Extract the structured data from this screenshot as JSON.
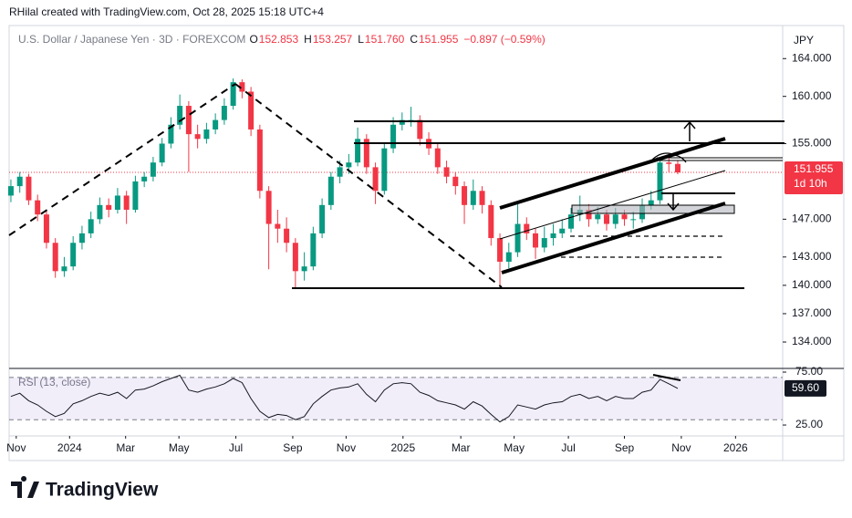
{
  "credit": "RHilal created with TradingView.com, Oct 28, 2025 15:18 UTC+4",
  "brand": "TradingView",
  "chart_data": {
    "type": "candlestick",
    "title": "U.S. Dollar / Japanese Yen · 3D · FOREXCOM",
    "ohlc_legend": [
      {
        "key": "O",
        "value": "152.853"
      },
      {
        "key": "H",
        "value": "153.257"
      },
      {
        "key": "L",
        "value": "151.760"
      },
      {
        "key": "C",
        "value": "151.955"
      }
    ],
    "change": "−0.897 (−0.59%)",
    "currency": "JPY",
    "countdown": "1d 10h",
    "up_color": "#089981",
    "down_color": "#f23645",
    "open": [
      149.5,
      150.5,
      151.5,
      149.0,
      147.5,
      144.5,
      141.5,
      142.0,
      144.5,
      145.5,
      147.0,
      148.5,
      148.0,
      149.5,
      148.0,
      151.0,
      151.5,
      153.0,
      155.0,
      157.0,
      159.0,
      156.0,
      155.5,
      156.5,
      157.5,
      159.0,
      161.5,
      160.5,
      156.5,
      150.0,
      146.5,
      146.0,
      144.5,
      141.5,
      142.0,
      145.5,
      148.5,
      151.5,
      152.5,
      153.0,
      155.5,
      152.5,
      150.0,
      154.5,
      157.0,
      157.5,
      157.5,
      155.5,
      154.5,
      152.5,
      151.5,
      150.5,
      148.5,
      150.0,
      148.5,
      145.0,
      142.5,
      143.5,
      146.5,
      145.5,
      144.0,
      145.0,
      145.5,
      146.0,
      147.5,
      148.0,
      147.0,
      147.5,
      146.5,
      147.5,
      147.0,
      147.0,
      148.5,
      149.0,
      153.0,
      152.853
    ],
    "high": [
      151.2,
      152.0,
      151.8,
      149.6,
      148.0,
      145.0,
      143.0,
      145.2,
      146.3,
      147.8,
      149.3,
      149.2,
      150.3,
      150.0,
      151.6,
      152.0,
      153.6,
      155.6,
      157.8,
      160.2,
      159.5,
      157.0,
      157.2,
      158.2,
      159.8,
      161.9,
      161.8,
      161.0,
      157.0,
      150.5,
      148.0,
      147.2,
      145.0,
      143.5,
      146.2,
      149.2,
      152.0,
      153.2,
      153.9,
      156.7,
      156.0,
      153.0,
      155.0,
      157.8,
      158.3,
      158.9,
      158.0,
      156.2,
      155.0,
      153.2,
      152.0,
      151.0,
      151.2,
      150.5,
      149.0,
      145.5,
      144.5,
      148.6,
      147.2,
      146.0,
      146.2,
      146.5,
      147.0,
      148.2,
      149.5,
      148.6,
      148.3,
      148.0,
      148.2,
      148.0,
      147.8,
      149.2,
      150.0,
      153.5,
      153.6,
      153.257
    ],
    "low": [
      148.8,
      149.8,
      148.5,
      146.8,
      143.9,
      140.8,
      140.9,
      141.6,
      143.8,
      145.0,
      146.5,
      147.2,
      147.6,
      146.5,
      147.7,
      150.4,
      151.0,
      152.6,
      154.5,
      156.5,
      152.0,
      154.5,
      155.0,
      156.0,
      157.0,
      158.6,
      159.8,
      155.8,
      149.2,
      141.7,
      144.5,
      143.5,
      139.6,
      140.5,
      141.6,
      145.0,
      148.0,
      150.8,
      151.8,
      152.6,
      151.8,
      148.6,
      149.6,
      154.0,
      156.4,
      156.8,
      154.8,
      153.8,
      151.8,
      150.8,
      149.6,
      146.5,
      148.0,
      147.6,
      144.2,
      139.9,
      141.8,
      143.0,
      144.8,
      142.8,
      143.5,
      144.2,
      145.0,
      145.6,
      146.8,
      146.2,
      146.5,
      145.8,
      146.0,
      146.3,
      146.0,
      146.6,
      148.0,
      148.6,
      152.0,
      151.76
    ],
    "close": [
      150.5,
      151.5,
      149.0,
      147.5,
      144.5,
      141.5,
      142.0,
      144.5,
      145.5,
      147.0,
      148.5,
      148.0,
      149.5,
      148.0,
      151.0,
      151.5,
      153.0,
      155.0,
      157.0,
      159.0,
      156.0,
      155.5,
      156.5,
      157.5,
      159.0,
      161.5,
      160.5,
      156.5,
      150.0,
      146.5,
      146.0,
      144.5,
      141.5,
      142.0,
      145.5,
      148.5,
      151.5,
      152.5,
      153.0,
      155.5,
      152.5,
      150.0,
      154.5,
      157.0,
      157.5,
      157.5,
      155.5,
      154.5,
      152.5,
      151.5,
      150.5,
      148.5,
      150.0,
      148.5,
      145.0,
      142.5,
      143.5,
      146.5,
      145.5,
      144.0,
      145.0,
      145.5,
      146.0,
      147.5,
      148.0,
      147.0,
      147.5,
      146.5,
      147.5,
      147.0,
      147.0,
      148.5,
      149.0,
      153.0,
      152.853,
      151.955
    ],
    "xlim": [
      -0.2,
      86.8
    ],
    "xticks": [
      {
        "value": 0.6,
        "label": "Nov"
      },
      {
        "value": 6.6,
        "label": "2024"
      },
      {
        "value": 12.9,
        "label": "Mar"
      },
      {
        "value": 18.9,
        "label": "May"
      },
      {
        "value": 25.3,
        "label": "Jul"
      },
      {
        "value": 31.7,
        "label": "Sep"
      },
      {
        "value": 37.7,
        "label": "Nov"
      },
      {
        "value": 44.1,
        "label": "2025"
      },
      {
        "value": 50.6,
        "label": "Mar"
      },
      {
        "value": 56.6,
        "label": "May"
      },
      {
        "value": 62.7,
        "label": "Jul"
      },
      {
        "value": 69.0,
        "label": "Sep"
      },
      {
        "value": 75.4,
        "label": "Nov"
      },
      {
        "value": 81.5,
        "label": "2026"
      }
    ],
    "ylim": [
      131.3,
      167.5
    ],
    "yticks": [
      {
        "value": 164,
        "label": "164.000"
      },
      {
        "value": 160,
        "label": "160.000"
      },
      {
        "value": 155,
        "label": "155.000"
      },
      {
        "value": 147,
        "label": "147.000"
      },
      {
        "value": 143,
        "label": "143.000"
      },
      {
        "value": 140,
        "label": "140.000"
      },
      {
        "value": 137,
        "label": "137.000"
      },
      {
        "value": 134,
        "label": "134.000"
      }
    ],
    "rsi": {
      "name": "RSI (13, close)",
      "color": "#131722",
      "band_color": "#7e57c2",
      "values": [
        52,
        55,
        48,
        44,
        38,
        33,
        36,
        45,
        48,
        52,
        55,
        53,
        56,
        50,
        58,
        59,
        62,
        66,
        69,
        72,
        58,
        56,
        59,
        61,
        64,
        69,
        65,
        50,
        38,
        32,
        35,
        34,
        30,
        33,
        45,
        52,
        58,
        60,
        61,
        64,
        54,
        47,
        58,
        64,
        65,
        64,
        56,
        53,
        48,
        46,
        44,
        40,
        47,
        43,
        35,
        28,
        33,
        44,
        42,
        40,
        44,
        46,
        47,
        52,
        54,
        50,
        52,
        48,
        52,
        50,
        50,
        56,
        58,
        68,
        64,
        59.6
      ],
      "last_label": "59.60",
      "ylim": [
        14.7,
        77.6
      ],
      "band": [
        30,
        70
      ],
      "yticks": [
        {
          "value": 75,
          "label": "75.00"
        },
        {
          "value": 25,
          "label": "25.00"
        }
      ]
    }
  }
}
